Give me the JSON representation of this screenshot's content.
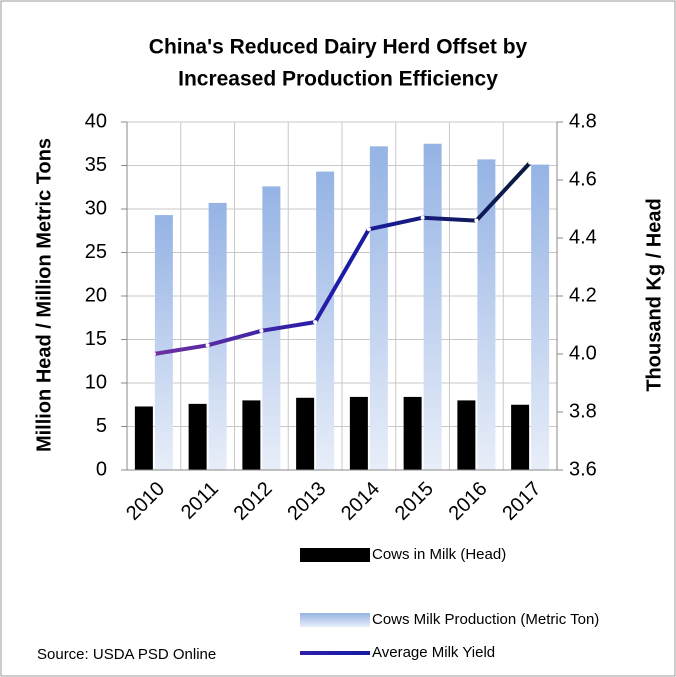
{
  "chart_data": {
    "type": "bar",
    "title": [
      "China's Reduced Dairy Herd Offset by",
      "Increased Production Efficiency"
    ],
    "ylabel": "Million Head / Million Metric Tons",
    "y2label": "Thousand Kg / Head",
    "source": "Source: USDA PSD Online",
    "categories": [
      "2010",
      "2011",
      "2012",
      "2013",
      "2014",
      "2015",
      "2016",
      "2017"
    ],
    "series": [
      {
        "name": "Cows in Milk (Head)",
        "color": "#000000",
        "values": [
          7.3,
          7.6,
          8.0,
          8.3,
          8.4,
          8.4,
          8.0,
          7.5
        ]
      },
      {
        "name": "Cows Milk Production (Metric Ton)",
        "color": [
          "#95b3e4",
          "#e8eef9"
        ],
        "values": [
          29.3,
          30.7,
          32.6,
          34.3,
          37.2,
          37.5,
          35.7,
          35.1
        ]
      },
      {
        "name": "Average Milk Yield",
        "type": "line",
        "axis": "y2",
        "color": [
          "#7030a0",
          "#1c1caa",
          "#0a1a3c"
        ],
        "values": [
          4.0,
          4.03,
          4.08,
          4.11,
          4.43,
          4.47,
          4.46,
          4.66
        ]
      }
    ],
    "ylim": [
      0,
      40
    ],
    "yticks": [
      0,
      5,
      10,
      15,
      20,
      25,
      30,
      35,
      40
    ],
    "y2lim": [
      3.6,
      4.8
    ],
    "y2ticks": [
      3.6,
      3.8,
      {
        "value": 4,
        "label": "4.0"
      },
      4.2,
      4.4,
      4.6,
      4.8
    ],
    "grid": true
  }
}
